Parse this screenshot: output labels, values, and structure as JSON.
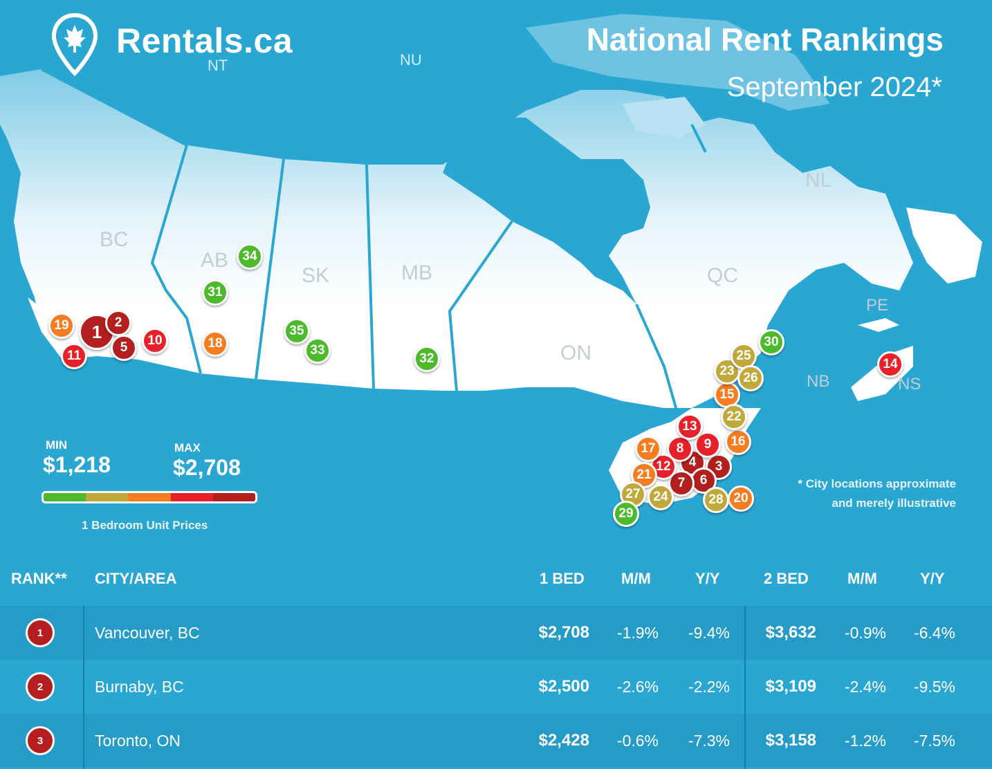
{
  "brand": {
    "name": "Rentals.ca",
    "logo_icon": "maple-leaf-pin-icon"
  },
  "header": {
    "title": "National Rent Rankings",
    "subtitle": "September 2024*"
  },
  "map": {
    "province_labels": [
      "NT",
      "NU",
      "BC",
      "AB",
      "SK",
      "MB",
      "ON",
      "QC",
      "NL",
      "PE",
      "NB",
      "NS"
    ],
    "markers": [
      {
        "rank": 1,
        "color": "#b31e1e",
        "big": true
      },
      {
        "rank": 2,
        "color": "#b31e1e"
      },
      {
        "rank": 3,
        "color": "#b31e1e"
      },
      {
        "rank": 4,
        "color": "#b31e1e"
      },
      {
        "rank": 5,
        "color": "#b31e1e"
      },
      {
        "rank": 6,
        "color": "#b31e1e"
      },
      {
        "rank": 7,
        "color": "#b31e1e"
      },
      {
        "rank": 8,
        "color": "#e8202a"
      },
      {
        "rank": 9,
        "color": "#e8202a"
      },
      {
        "rank": 10,
        "color": "#e8202a"
      },
      {
        "rank": 11,
        "color": "#e8202a"
      },
      {
        "rank": 12,
        "color": "#e8202a"
      },
      {
        "rank": 13,
        "color": "#e8202a"
      },
      {
        "rank": 14,
        "color": "#e8202a"
      },
      {
        "rank": 15,
        "color": "#f57c20"
      },
      {
        "rank": 16,
        "color": "#f57c20"
      },
      {
        "rank": 17,
        "color": "#f57c20"
      },
      {
        "rank": 18,
        "color": "#f57c20"
      },
      {
        "rank": 19,
        "color": "#f57c20"
      },
      {
        "rank": 20,
        "color": "#f57c20"
      },
      {
        "rank": 21,
        "color": "#f57c20"
      },
      {
        "rank": 22,
        "color": "#c1a83a"
      },
      {
        "rank": 23,
        "color": "#c1a83a"
      },
      {
        "rank": 24,
        "color": "#c1a83a"
      },
      {
        "rank": 25,
        "color": "#c1a83a"
      },
      {
        "rank": 26,
        "color": "#c1a83a"
      },
      {
        "rank": 27,
        "color": "#c1a83a"
      },
      {
        "rank": 28,
        "color": "#c1a83a"
      },
      {
        "rank": 29,
        "color": "#4cba2a"
      },
      {
        "rank": 30,
        "color": "#4cba2a"
      },
      {
        "rank": 31,
        "color": "#4cba2a"
      },
      {
        "rank": 32,
        "color": "#4cba2a"
      },
      {
        "rank": 33,
        "color": "#4cba2a"
      },
      {
        "rank": 34,
        "color": "#4cba2a"
      },
      {
        "rank": 35,
        "color": "#4cba2a"
      }
    ]
  },
  "legend": {
    "min_label": "MIN",
    "min_value": "$1,218",
    "max_label": "MAX",
    "max_value": "$2,708",
    "caption": "1 Bedroom Unit Prices",
    "colors": [
      "#4cba2a",
      "#c1a83a",
      "#f57c20",
      "#e8202a",
      "#b31e1e"
    ]
  },
  "note": {
    "line1": "* City locations approximate",
    "line2": "and merely illustrative"
  },
  "table": {
    "headers": {
      "rank": "RANK**",
      "city": "CITY/AREA",
      "bed1": "1 BED",
      "mm1": "M/M",
      "yy1": "Y/Y",
      "bed2": "2 BED",
      "mm2": "M/M",
      "yy2": "Y/Y"
    },
    "rows": [
      {
        "rank": "1",
        "city": "Vancouver, BC",
        "bed1": "$2,708",
        "mm1": "-1.9%",
        "yy1": "-9.4%",
        "bed2": "$3,632",
        "mm2": "-0.9%",
        "yy2": "-6.4%"
      },
      {
        "rank": "2",
        "city": "Burnaby, BC",
        "bed1": "$2,500",
        "mm1": "-2.6%",
        "yy1": "-2.2%",
        "bed2": "$3,109",
        "mm2": "-2.4%",
        "yy2": "-9.5%"
      },
      {
        "rank": "3",
        "city": "Toronto, ON",
        "bed1": "$2,428",
        "mm1": "-0.6%",
        "yy1": "-7.3%",
        "bed2": "$3,158",
        "mm2": "-1.2%",
        "yy2": "-7.5%"
      }
    ],
    "row_colors": [
      "#259cc8",
      "#2aa6d2",
      "#259cc8"
    ]
  }
}
